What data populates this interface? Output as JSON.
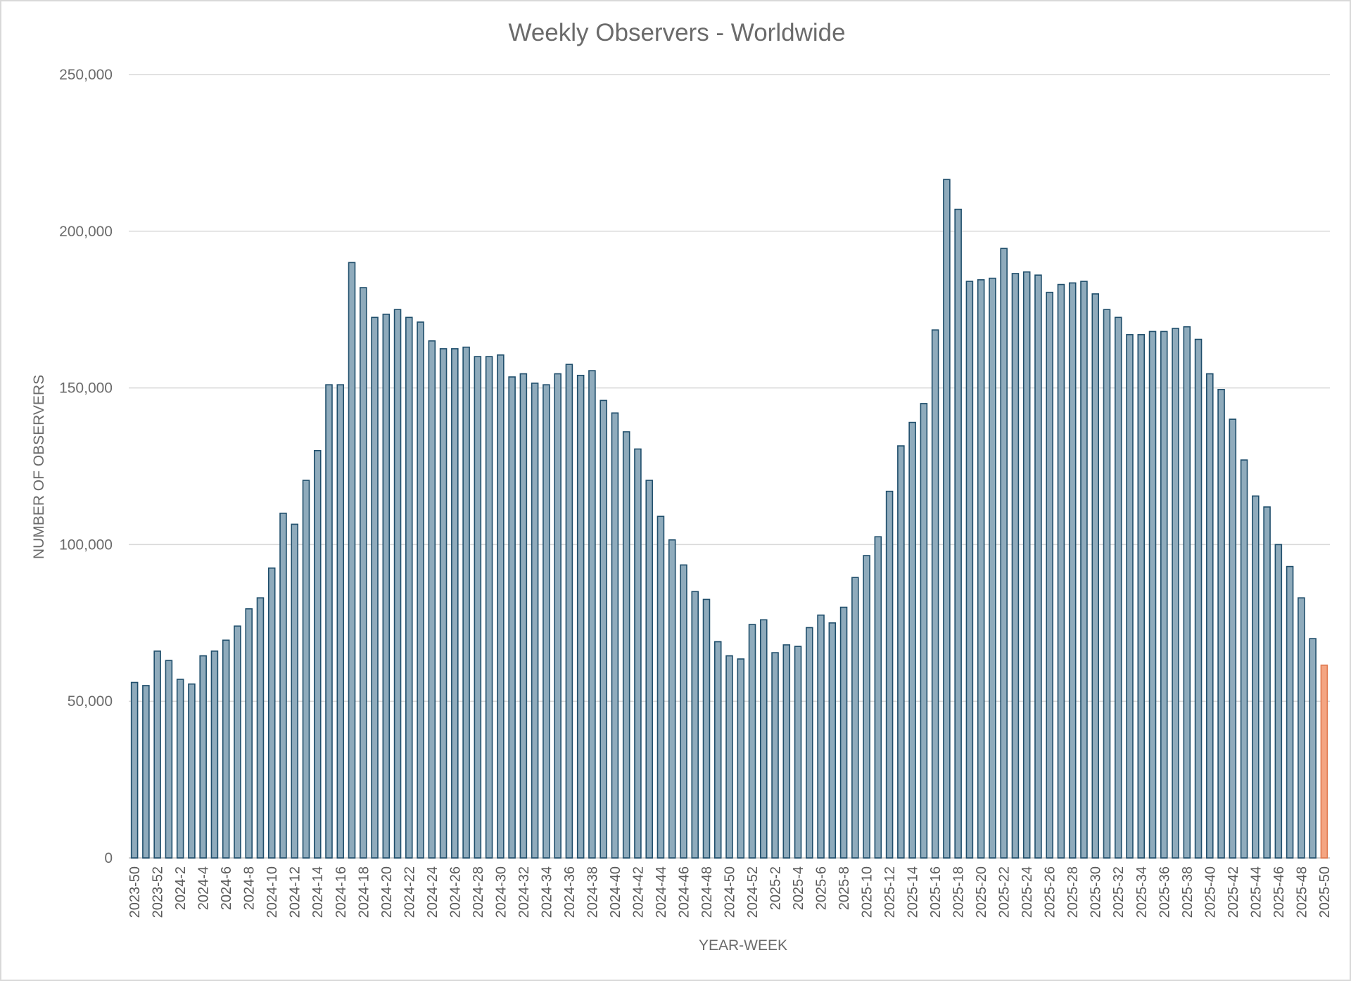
{
  "chart_data": {
    "type": "bar",
    "title": "Weekly Observers - Worldwide",
    "xlabel": "YEAR-WEEK",
    "ylabel": "NUMBER OF OBSERVERS",
    "ylim": [
      0,
      250000
    ],
    "yticks": [
      "0",
      "50,000",
      "100,000",
      "150,000",
      "200,000",
      "250,000"
    ],
    "grid": true,
    "legend": "none",
    "colors": {
      "bar_fill": "#8fabbc",
      "bar_stroke": "#1f4e6b",
      "highlight_fill": "#f4a582",
      "highlight_stroke": "#e07a50",
      "text": "#6b6b6b",
      "grid": "#d9d9d9"
    },
    "highlight_last": true,
    "categories": [
      "2023-50",
      "2023-51",
      "2023-52",
      "2024-1",
      "2024-2",
      "2024-3",
      "2024-4",
      "2024-5",
      "2024-6",
      "2024-7",
      "2024-8",
      "2024-9",
      "2024-10",
      "2024-11",
      "2024-12",
      "2024-13",
      "2024-14",
      "2024-15",
      "2024-16",
      "2024-17",
      "2024-18",
      "2024-19",
      "2024-20",
      "2024-21",
      "2024-22",
      "2024-23",
      "2024-24",
      "2024-25",
      "2024-26",
      "2024-27",
      "2024-28",
      "2024-29",
      "2024-30",
      "2024-31",
      "2024-32",
      "2024-33",
      "2024-34",
      "2024-35",
      "2024-36",
      "2024-37",
      "2024-38",
      "2024-39",
      "2024-40",
      "2024-41",
      "2024-42",
      "2024-43",
      "2024-44",
      "2024-45",
      "2024-46",
      "2024-47",
      "2024-48",
      "2024-49",
      "2024-50",
      "2024-51",
      "2024-52",
      "2025-1",
      "2025-2",
      "2025-3",
      "2025-4",
      "2025-5",
      "2025-6",
      "2025-7",
      "2025-8",
      "2025-9",
      "2025-10",
      "2025-11",
      "2025-12",
      "2025-13",
      "2025-14",
      "2025-15",
      "2025-16",
      "2025-17",
      "2025-18",
      "2025-19",
      "2025-20",
      "2025-21",
      "2025-22",
      "2025-23",
      "2025-24",
      "2025-25",
      "2025-26",
      "2025-27",
      "2025-28",
      "2025-29",
      "2025-30",
      "2025-31",
      "2025-32",
      "2025-33",
      "2025-34",
      "2025-35",
      "2025-36",
      "2025-37",
      "2025-38",
      "2025-39",
      "2025-40",
      "2025-41",
      "2025-42",
      "2025-43",
      "2025-44",
      "2025-45",
      "2025-46",
      "2025-47",
      "2025-48",
      "2025-49",
      "2025-50"
    ],
    "tick_labels": [
      "2023-50",
      "2023-52",
      "2024-2",
      "2024-4",
      "2024-6",
      "2024-8",
      "2024-10",
      "2024-12",
      "2024-14",
      "2024-16",
      "2024-18",
      "2024-20",
      "2024-22",
      "2024-24",
      "2024-26",
      "2024-28",
      "2024-30",
      "2024-32",
      "2024-34",
      "2024-36",
      "2024-38",
      "2024-40",
      "2024-42",
      "2024-44",
      "2024-46",
      "2024-48",
      "2024-50",
      "2024-52",
      "2025-2",
      "2025-4",
      "2025-6",
      "2025-8",
      "2025-10",
      "2025-12",
      "2025-14",
      "2025-16",
      "2025-18",
      "2025-20",
      "2025-22",
      "2025-24",
      "2025-26",
      "2025-28",
      "2025-30",
      "2025-32",
      "2025-34",
      "2025-36",
      "2025-38",
      "2025-40",
      "2025-42",
      "2025-44",
      "2025-46",
      "2025-48",
      "2025-50"
    ],
    "values": [
      56000,
      55000,
      66000,
      63000,
      57000,
      55500,
      64500,
      66000,
      69500,
      74000,
      79500,
      83000,
      92500,
      110000,
      106500,
      120500,
      130000,
      151000,
      151000,
      190000,
      182000,
      172500,
      173500,
      175000,
      172500,
      171000,
      165000,
      162500,
      162500,
      163000,
      160000,
      160000,
      160500,
      153500,
      154500,
      151500,
      151000,
      154500,
      157500,
      154000,
      155500,
      146000,
      142000,
      136000,
      130500,
      120500,
      109000,
      101500,
      93500,
      85000,
      82500,
      69000,
      64500,
      63500,
      74500,
      76000,
      65500,
      68000,
      67500,
      73500,
      77500,
      75000,
      80000,
      89500,
      96500,
      102500,
      117000,
      131500,
      139000,
      145000,
      168500,
      216500,
      207000,
      184000,
      184500,
      185000,
      194500,
      186500,
      187000,
      186000,
      180500,
      183000,
      183500,
      184000,
      180000,
      175000,
      172500,
      167000,
      167000,
      168000,
      168000,
      169000,
      169500,
      165500,
      154500,
      149500,
      140000,
      127000,
      115500,
      112000,
      100000,
      93000,
      83000,
      70000,
      61500
    ]
  }
}
